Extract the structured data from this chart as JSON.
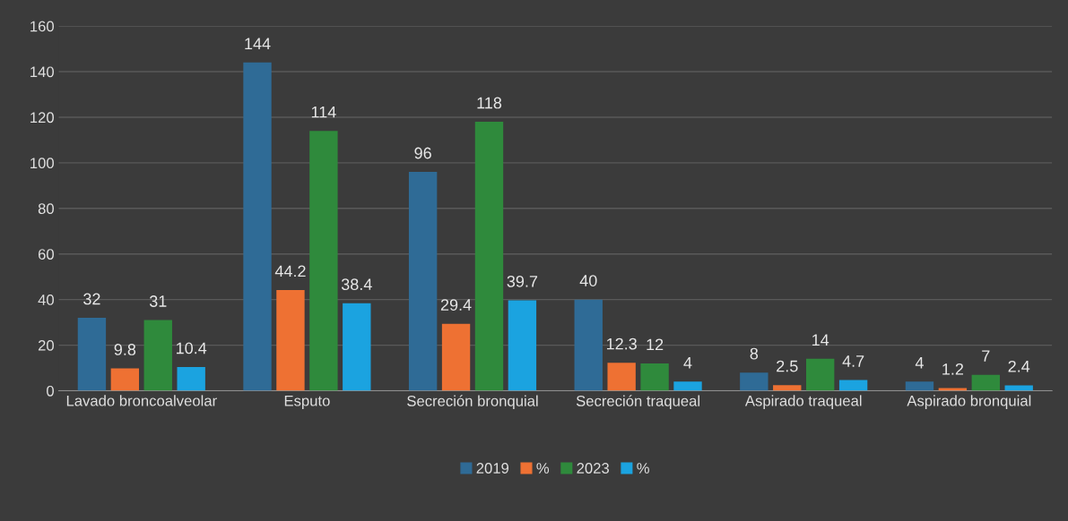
{
  "chart_data": {
    "type": "bar",
    "categories": [
      "Lavado broncoalveolar",
      "Esputo",
      "Secreción bronquial",
      "Secreción traqueal",
      "Aspirado traqueal",
      "Aspirado bronquial"
    ],
    "series": [
      {
        "name": "2019",
        "color": "#2f6b96",
        "values": [
          32,
          144,
          96,
          40,
          8,
          4
        ]
      },
      {
        "name": "%",
        "color": "#ee7133",
        "values": [
          9.8,
          44.2,
          29.4,
          12.3,
          2.5,
          1.2
        ]
      },
      {
        "name": "2023",
        "color": "#2f8a3c",
        "values": [
          31,
          114,
          118,
          12,
          14,
          7
        ]
      },
      {
        "name": "%",
        "color": "#1ba3e0",
        "values": [
          10.4,
          38.4,
          39.7,
          4,
          4.7,
          2.4
        ]
      }
    ],
    "ylim": [
      0,
      160
    ],
    "yticks": [
      0,
      20,
      40,
      60,
      80,
      100,
      120,
      140,
      160
    ],
    "grid": "y",
    "legend": "bottom",
    "data_labels": true
  }
}
